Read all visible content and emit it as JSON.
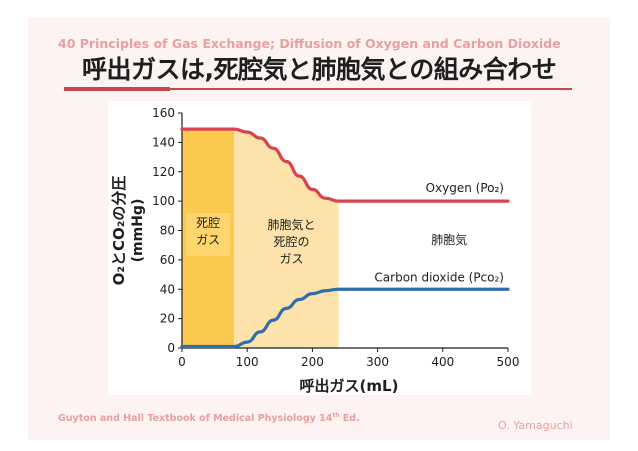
{
  "header": {
    "course_line": "40 Principles of Gas Exchange; Diffusion of Oxygen and Carbon Dioxide",
    "title": "呼出ガスは,死腔気と肺胞気との組み合わせ"
  },
  "footer": {
    "citation_text": "Guyton and Hall Textbook of Medical Physiology 14",
    "citation_sup": "th",
    "citation_end": " Ed.",
    "author": "O. Yamaguchi"
  },
  "colors": {
    "accent": "#c8464c",
    "oxygen_line": "#d9434e",
    "co2_line": "#2f6ea8",
    "dead_space_fill": "#fcc94f",
    "mixed_fill": "#fde3ab",
    "header_text": "#e8a0a0"
  },
  "chart_data": {
    "type": "line",
    "xlabel": "呼出ガス(mL)",
    "ylabel_main": "O₂とCO₂の分圧",
    "ylabel_unit": "(mmHg)",
    "xlim": [
      0,
      500
    ],
    "ylim": [
      0,
      160
    ],
    "xticks": [
      0,
      100,
      200,
      300,
      400,
      500
    ],
    "yticks": [
      0,
      20,
      40,
      60,
      80,
      100,
      120,
      140,
      160
    ],
    "grid": false,
    "regions": [
      {
        "label_lines": [
          "死腔",
          "ガス"
        ],
        "x_range": [
          0,
          80
        ]
      },
      {
        "label_lines": [
          "肺胞気と",
          "死腔の",
          "ガス"
        ],
        "x_range": [
          80,
          240
        ]
      },
      {
        "label_lines": [
          "肺胞気"
        ],
        "x_range": [
          240,
          500
        ]
      }
    ],
    "series": [
      {
        "name": "Oxygen  (Po₂)",
        "x": [
          0,
          80,
          100,
          120,
          140,
          160,
          180,
          200,
          220,
          240,
          500
        ],
        "y": [
          149,
          149,
          147,
          143,
          136,
          127,
          117,
          108,
          102,
          100,
          100
        ]
      },
      {
        "name": "Carbon dioxide (Pco₂)",
        "x": [
          0,
          80,
          100,
          120,
          140,
          160,
          180,
          200,
          220,
          240,
          500
        ],
        "y": [
          1,
          1,
          4,
          11,
          19,
          27,
          33,
          37,
          39,
          40,
          40
        ]
      }
    ]
  }
}
